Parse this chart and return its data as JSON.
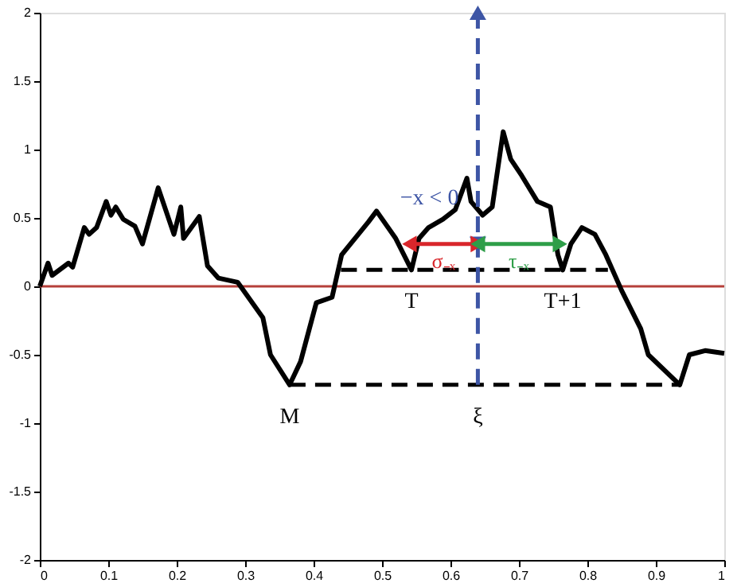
{
  "chart_data": {
    "type": "line",
    "xlim": [
      0,
      1
    ],
    "xticks": [
      0,
      0.1,
      0.2,
      0.3,
      0.4,
      0.5,
      0.6,
      0.7,
      0.8,
      0.9,
      1
    ],
    "ylim": [
      -2,
      2
    ],
    "yticks": [
      -2,
      -1.5,
      -1,
      -0.5,
      0,
      0.5,
      1,
      1.5,
      2
    ],
    "grid": false,
    "ref_lines": [
      {
        "axis": "y",
        "value": 0,
        "color": "#b5403a",
        "line_style": "solid"
      }
    ],
    "annotations": [
      {
        "text": "T",
        "x": 0.543,
        "y": 0.12
      },
      {
        "text": "T+1",
        "x": 0.764,
        "y": 0.12
      },
      {
        "text": "M",
        "x": 0.365,
        "y": -0.72
      },
      {
        "text": "ξ",
        "x": 0.64,
        "y": -0.72
      }
    ],
    "series": [
      {
        "color": "#000000",
        "line_style": "solid",
        "marker": "none",
        "x": [
          0,
          0.012,
          0.018,
          0.042,
          0.048,
          0.065,
          0.072,
          0.083,
          0.097,
          0.104,
          0.111,
          0.122,
          0.139,
          0.15,
          0.173,
          0.196,
          0.206,
          0.21,
          0.233,
          0.245,
          0.261,
          0.289,
          0.326,
          0.337,
          0.365,
          0.381,
          0.404,
          0.427,
          0.441,
          0.48,
          0.492,
          0.52,
          0.543,
          0.554,
          0.568,
          0.589,
          0.607,
          0.624,
          0.63,
          0.647,
          0.661,
          0.677,
          0.688,
          0.704,
          0.727,
          0.746,
          0.757,
          0.764,
          0.776,
          0.792,
          0.811,
          0.827,
          0.85,
          0.878,
          0.889,
          0.935,
          0.949,
          0.972,
          1.0
        ],
        "values": [
          0,
          0.17,
          0.08,
          0.17,
          0.14,
          0.43,
          0.38,
          0.43,
          0.62,
          0.52,
          0.58,
          0.49,
          0.44,
          0.31,
          0.72,
          0.38,
          0.58,
          0.35,
          0.51,
          0.15,
          0.06,
          0.03,
          -0.23,
          -0.5,
          -0.72,
          -0.55,
          -0.12,
          -0.08,
          0.23,
          0.47,
          0.55,
          0.35,
          0.12,
          0.35,
          0.43,
          0.49,
          0.56,
          0.79,
          0.62,
          0.52,
          0.58,
          1.13,
          0.93,
          0.81,
          0.62,
          0.58,
          0.23,
          0.12,
          0.31,
          0.43,
          0.38,
          0.23,
          -0.03,
          -0.31,
          -0.5,
          -0.72,
          -0.5,
          -0.47,
          -0.49
        ]
      },
      {
        "color": "#000000",
        "line_style": "dashed",
        "marker": "none",
        "x": [
          0.365,
          0.935
        ],
        "values": [
          -0.72,
          -0.72
        ]
      },
      {
        "color": "#000000",
        "line_style": "dashed",
        "marker": "none",
        "x": [
          0.44,
          0.83
        ],
        "values": [
          0.12,
          0.12
        ]
      },
      {
        "color": "#3d55a5",
        "line_style": "dashed",
        "x": [
          0.64,
          0.64
        ],
        "values": [
          -0.72,
          0.31
        ]
      },
      {
        "name": "−x < 0",
        "color": "#3d55a5",
        "line_style": "dashed",
        "marker": "triangle",
        "x": [
          0.64,
          0.64
        ],
        "values": [
          2,
          0.31
        ]
      },
      {
        "name": "σ₋ₓ",
        "color": "#d9262b",
        "line_style": "solid",
        "marker": "triangle",
        "x": [
          0.64,
          0.54
        ],
        "values": [
          0.31,
          0.31
        ]
      },
      {
        "name": "τ₋ₓ",
        "color": "#2e9e48",
        "line_style": "solid",
        "marker": "triangle",
        "x": [
          0.64,
          0.76
        ],
        "values": [
          0.31,
          0.31
        ]
      }
    ]
  }
}
